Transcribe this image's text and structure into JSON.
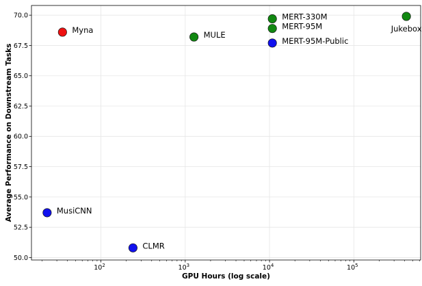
{
  "chart_data": {
    "type": "scatter",
    "xlabel": "GPU Hours (log scale)",
    "ylabel": "Average Performance on Downstream Tasks",
    "xscale": "log",
    "xlim": [
      15,
      620000
    ],
    "ylim": [
      49.8,
      70.8
    ],
    "grid": true,
    "legend": "none",
    "yticks": [
      50.0,
      52.5,
      55.0,
      57.5,
      60.0,
      62.5,
      65.0,
      67.5,
      70.0
    ],
    "ytick_labels": [
      "50.0",
      "52.5",
      "55.0",
      "57.5",
      "60.0",
      "62.5",
      "65.0",
      "67.5",
      "70.0"
    ],
    "xticks": [
      100,
      1000,
      10000,
      100000
    ],
    "xtick_labels": [
      {
        "base": "10",
        "exp": "2"
      },
      {
        "base": "10",
        "exp": "3"
      },
      {
        "base": "10",
        "exp": "4"
      },
      {
        "base": "10",
        "exp": "5"
      }
    ],
    "points": [
      {
        "label": "Myna",
        "x": 35,
        "y": 68.6,
        "color": "#ee1111",
        "label_pos": "right"
      },
      {
        "label": "MULE",
        "x": 1270,
        "y": 68.2,
        "color": "#118811",
        "label_pos": "right"
      },
      {
        "label": "MERT-330M",
        "x": 10800,
        "y": 69.7,
        "color": "#118811",
        "label_pos": "right"
      },
      {
        "label": "MERT-95M",
        "x": 10800,
        "y": 68.9,
        "color": "#118811",
        "label_pos": "right"
      },
      {
        "label": "MERT-95M-Public",
        "x": 10800,
        "y": 67.7,
        "color": "#1111ee",
        "label_pos": "right"
      },
      {
        "label": "Jukebox",
        "x": 420000,
        "y": 69.9,
        "color": "#118811",
        "label_pos": "below"
      },
      {
        "label": "MusiCNN",
        "x": 23,
        "y": 53.7,
        "color": "#1111ee",
        "label_pos": "right"
      },
      {
        "label": "CLMR",
        "x": 240,
        "y": 50.8,
        "color": "#1111ee",
        "label_pos": "right"
      }
    ]
  }
}
